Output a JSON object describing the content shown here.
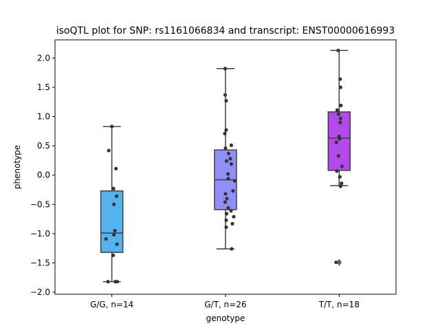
{
  "chart_data": {
    "type": "box",
    "title": "isoQTL plot for SNP: rs1161066834 and transcript: ENST00000616993",
    "xlabel": "genotype",
    "ylabel": "phenotype",
    "ylim": [
      -2.0,
      2.27
    ],
    "yticks": [
      -2.0,
      -1.5,
      -1.0,
      -0.5,
      0.0,
      0.5,
      1.0,
      1.5,
      2.0
    ],
    "ytick_labels": [
      "−2.0",
      "−1.5",
      "−1.0",
      "−0.5",
      "0.0",
      "0.5",
      "1.0",
      "1.5",
      "2.0"
    ],
    "grid": false,
    "categories": [
      "G/G, n=14",
      "G/T, n=26",
      "T/T, n=18"
    ],
    "boxes": [
      {
        "category": "G/G, n=14",
        "color": "#53b2ee",
        "q1": -1.32,
        "median": -0.99,
        "q3": -0.27,
        "whisker_low": -1.82,
        "whisker_high": 0.83,
        "outliers": []
      },
      {
        "category": "G/T, n=26",
        "color": "#8e90f7",
        "q1": -0.59,
        "median": -0.08,
        "q3": 0.43,
        "whisker_low": -1.26,
        "whisker_high": 1.82,
        "outliers": []
      },
      {
        "category": "T/T, n=18",
        "color": "#b24ae9",
        "q1": 0.08,
        "median": 0.63,
        "q3": 1.08,
        "whisker_low": -0.18,
        "whisker_high": 2.13,
        "outliers": [
          -1.49
        ]
      }
    ],
    "points": [
      [
        {
          "dx": 0.0,
          "y": 0.83
        },
        {
          "dx": -0.09,
          "y": 0.42
        },
        {
          "dx": 0.12,
          "y": 0.11
        },
        {
          "dx": 0.05,
          "y": -0.23
        },
        {
          "dx": 0.14,
          "y": -0.36
        },
        {
          "dx": 0.06,
          "y": -0.5
        },
        {
          "dx": 0.09,
          "y": -0.95
        },
        {
          "dx": 0.06,
          "y": -1.02
        },
        {
          "dx": -0.17,
          "y": -1.09
        },
        {
          "dx": 0.15,
          "y": -1.18
        },
        {
          "dx": 0.04,
          "y": -1.37
        },
        {
          "dx": -0.11,
          "y": -1.82
        },
        {
          "dx": 0.1,
          "y": -1.82
        },
        {
          "dx": 0.16,
          "y": -1.82
        }
      ],
      [
        {
          "dx": -0.01,
          "y": 1.82
        },
        {
          "dx": -0.01,
          "y": 1.37
        },
        {
          "dx": 0.02,
          "y": 1.27
        },
        {
          "dx": 0.02,
          "y": 0.77
        },
        {
          "dx": -0.02,
          "y": 0.71
        },
        {
          "dx": 0.17,
          "y": 0.51
        },
        {
          "dx": 0.0,
          "y": 0.46
        },
        {
          "dx": 0.09,
          "y": 0.37
        },
        {
          "dx": 0.14,
          "y": 0.28
        },
        {
          "dx": 0.03,
          "y": 0.24
        },
        {
          "dx": 0.17,
          "y": 0.19
        },
        {
          "dx": 0.07,
          "y": 0.02
        },
        {
          "dx": 0.08,
          "y": -0.06
        },
        {
          "dx": 0.27,
          "y": -0.1
        },
        {
          "dx": 0.22,
          "y": -0.27
        },
        {
          "dx": 0.0,
          "y": -0.32
        },
        {
          "dx": 0.04,
          "y": -0.4
        },
        {
          "dx": -0.01,
          "y": -0.46
        },
        {
          "dx": 0.08,
          "y": -0.56
        },
        {
          "dx": 0.16,
          "y": -0.61
        },
        {
          "dx": 0.03,
          "y": -0.66
        },
        {
          "dx": 0.24,
          "y": -0.71
        },
        {
          "dx": 0.02,
          "y": -0.77
        },
        {
          "dx": 0.2,
          "y": -0.83
        },
        {
          "dx": 0.02,
          "y": -0.89
        },
        {
          "dx": 0.18,
          "y": -1.26
        }
      ],
      [
        {
          "dx": -0.03,
          "y": 2.13
        },
        {
          "dx": 0.03,
          "y": 1.64
        },
        {
          "dx": 0.04,
          "y": 1.5
        },
        {
          "dx": 0.05,
          "y": 1.19
        },
        {
          "dx": -0.06,
          "y": 1.11
        },
        {
          "dx": -0.02,
          "y": 1.04
        },
        {
          "dx": 0.04,
          "y": 0.97
        },
        {
          "dx": 0.03,
          "y": 0.9
        },
        {
          "dx": 0.0,
          "y": 0.66
        },
        {
          "dx": 0.01,
          "y": 0.62
        },
        {
          "dx": -0.08,
          "y": 0.56
        },
        {
          "dx": -0.02,
          "y": 0.33
        },
        {
          "dx": 0.08,
          "y": 0.15
        },
        {
          "dx": -0.07,
          "y": 0.07
        },
        {
          "dx": 0.02,
          "y": -0.03
        },
        {
          "dx": 0.07,
          "y": -0.14
        },
        {
          "dx": 0.04,
          "y": -0.19
        },
        {
          "dx": -0.09,
          "y": -1.49
        }
      ]
    ],
    "colors": {
      "point": "#333333",
      "line": "#3f3f3f",
      "outlier": "#666666"
    }
  }
}
